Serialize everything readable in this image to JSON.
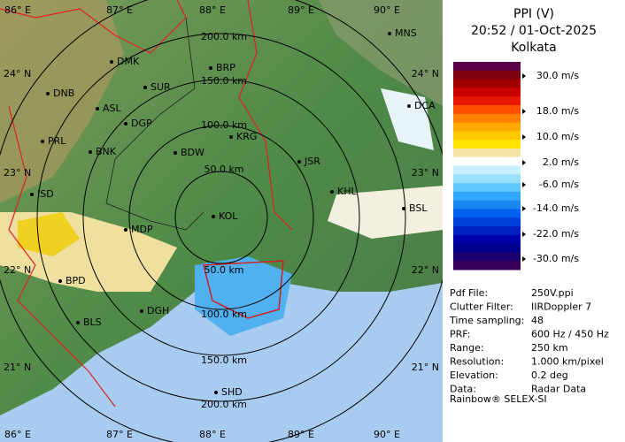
{
  "map": {
    "ring_labels": [
      "200.0 km",
      "150.0 km",
      "100.0 km",
      "50.0 km",
      "50.0 km",
      "100.0 km",
      "150.0 km",
      "200.0 km"
    ],
    "lon_labels": [
      "86° E",
      "87° E",
      "88° E",
      "89° E",
      "90° E"
    ],
    "lat_labels": [
      "24° N",
      "23° N",
      "22° N",
      "21° N"
    ],
    "cities": [
      "MNS",
      "DMK",
      "BRP",
      "DNB",
      "SUR",
      "DCA",
      "ASL",
      "DGP",
      "KRG",
      "PRL",
      "BNK",
      "BDW",
      "JSR",
      "KHL",
      "ISD",
      "BSL",
      "KOL",
      "MDP",
      "BPD",
      "DGH",
      "BLS",
      "SHD"
    ]
  },
  "panel": {
    "title": [
      "PPI (V)",
      "20:52 / 01-Oct-2025",
      "Kolkata"
    ],
    "legend": {
      "colors": [
        "#5a0048",
        "#7a0010",
        "#a00000",
        "#c80000",
        "#e81800",
        "#ff5000",
        "#ff8000",
        "#ffa800",
        "#ffc800",
        "#ffe400",
        "#f4e4a8",
        "#ffffff",
        "#c8f0ff",
        "#98e0ff",
        "#60c8ff",
        "#30a8ff",
        "#1888f0",
        "#0060f0",
        "#0040d8",
        "#0020c0",
        "#0000a8",
        "#000090",
        "#1c0070",
        "#38005c"
      ],
      "labels": [
        "30.0 m/s",
        "18.0 m/s",
        "10.0 m/s",
        "2.0 m/s",
        "-6.0 m/s",
        "-14.0 m/s",
        "-22.0 m/s",
        "-30.0 m/s"
      ]
    },
    "info": [
      [
        "Pdf File:",
        "250V.ppi"
      ],
      [
        "Clutter Filter:",
        "IIRDoppler 7"
      ],
      [
        "Time sampling:",
        "48"
      ],
      [
        "PRF:",
        "600 Hz / 450 Hz"
      ],
      [
        "Range:",
        "250 km"
      ],
      [
        "Resolution:",
        "1.000 km/pixel"
      ],
      [
        "Elevation:",
        "0.2 deg"
      ],
      [
        "Data:",
        "Radar Data"
      ]
    ],
    "footer": "Rainbow® SELEX-SI"
  }
}
